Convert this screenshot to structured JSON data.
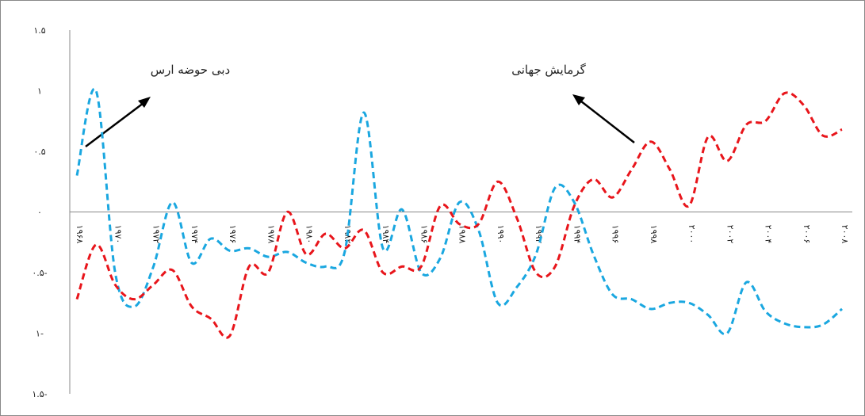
{
  "chart_data": {
    "type": "line",
    "x": [
      1968,
      1969,
      1970,
      1971,
      1972,
      1973,
      1974,
      1975,
      1976,
      1977,
      1978,
      1979,
      1980,
      1981,
      1982,
      1983,
      1984,
      1985,
      1986,
      1987,
      1988,
      1989,
      1990,
      1991,
      1992,
      1993,
      1994,
      1995,
      1996,
      1997,
      1998,
      1999,
      2000,
      2001,
      2002,
      2003,
      2004,
      2005,
      2006,
      2007,
      2008
    ],
    "xlim": [
      1968,
      2008
    ],
    "xticks": [
      {
        "value": 1968,
        "label": "۱۹۶۸"
      },
      {
        "value": 1970,
        "label": "۱۹۷۰"
      },
      {
        "value": 1972,
        "label": "۱۹۷۲"
      },
      {
        "value": 1974,
        "label": "۱۹۷۴"
      },
      {
        "value": 1976,
        "label": "۱۹۷۶"
      },
      {
        "value": 1978,
        "label": "۱۹۷۸"
      },
      {
        "value": 1980,
        "label": "۱۹۸۰"
      },
      {
        "value": 1982,
        "label": "۱۹۸۲"
      },
      {
        "value": 1984,
        "label": "۱۹۸۴"
      },
      {
        "value": 1986,
        "label": "۱۹۸۶"
      },
      {
        "value": 1988,
        "label": "۱۹۸۸"
      },
      {
        "value": 1990,
        "label": "۱۹۹۰"
      },
      {
        "value": 1992,
        "label": "۱۹۹۲"
      },
      {
        "value": 1994,
        "label": "۱۹۹۴"
      },
      {
        "value": 1996,
        "label": "۱۹۹۶"
      },
      {
        "value": 1998,
        "label": "۱۹۹۸"
      },
      {
        "value": 2000,
        "label": "۲۰۰۰"
      },
      {
        "value": 2002,
        "label": "۲۰۰۲"
      },
      {
        "value": 2004,
        "label": "۲۰۰۴"
      },
      {
        "value": 2006,
        "label": "۲۰۰۶"
      },
      {
        "value": 2008,
        "label": "۲۰۰۸"
      }
    ],
    "ylim": [
      -1.5,
      1.5
    ],
    "yticks": [
      {
        "value": 1.5,
        "label": "۱.۵"
      },
      {
        "value": 1,
        "label": "۱"
      },
      {
        "value": 0.5,
        "label": "۰.۵"
      },
      {
        "value": 0,
        "label": "۰"
      },
      {
        "value": -0.5,
        "label": "۰.۵-"
      },
      {
        "value": -1,
        "label": "۱-"
      },
      {
        "value": -1.5,
        "label": "۱.۵-"
      }
    ],
    "series": [
      {
        "color": "#1aa7e0",
        "values": [
          0.3,
          1.0,
          -0.5,
          -0.78,
          -0.45,
          0.08,
          -0.42,
          -0.22,
          -0.32,
          -0.3,
          -0.37,
          -0.33,
          -0.42,
          -0.45,
          -0.33,
          0.82,
          -0.3,
          0.02,
          -0.5,
          -0.38,
          0.08,
          -0.15,
          -0.75,
          -0.62,
          -0.35,
          0.2,
          0.08,
          -0.35,
          -0.68,
          -0.72,
          -0.8,
          -0.75,
          -0.75,
          -0.85,
          -1.0,
          -0.58,
          -0.82,
          -0.92,
          -0.95,
          -0.93,
          -0.8
        ]
      },
      {
        "color": "#e8151b",
        "values": [
          -0.72,
          -0.27,
          -0.6,
          -0.72,
          -0.6,
          -0.48,
          -0.78,
          -0.88,
          -1.02,
          -0.45,
          -0.5,
          0.0,
          -0.35,
          -0.18,
          -0.3,
          -0.15,
          -0.5,
          -0.45,
          -0.45,
          0.05,
          -0.1,
          -0.1,
          0.25,
          -0.05,
          -0.5,
          -0.45,
          0.05,
          0.27,
          0.12,
          0.35,
          0.58,
          0.35,
          0.05,
          0.62,
          0.42,
          0.72,
          0.75,
          0.98,
          0.88,
          0.63,
          0.68
        ]
      }
    ],
    "annotations": [
      "دبی حوضه ارس",
      "گرمایش جهانی"
    ]
  }
}
